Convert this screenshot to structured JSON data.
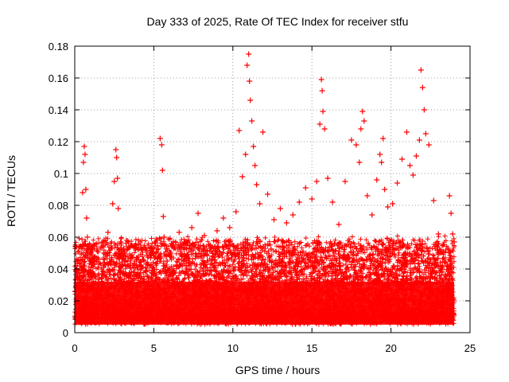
{
  "chart_data": {
    "type": "scatter",
    "title": "Day 333 of 2025, Rate Of TEC Index for receiver stfu",
    "xlabel": "GPS time / hours",
    "ylabel": "ROTI / TECUs",
    "xlim": [
      0,
      25
    ],
    "ylim": [
      0,
      0.18
    ],
    "xticks": [
      0,
      5,
      10,
      15,
      20,
      25
    ],
    "xtick_labels": [
      "0",
      "5",
      "10",
      "15",
      "20",
      "25"
    ],
    "yticks": [
      0,
      0.02,
      0.04,
      0.06,
      0.08,
      0.1,
      0.12,
      0.14,
      0.16,
      0.18
    ],
    "ytick_labels": [
      "0",
      "0.02",
      "0.04",
      "0.06",
      "0.08",
      "0.1",
      "0.12",
      "0.14",
      "0.16",
      "0.18"
    ],
    "grid": true,
    "marker": "plus",
    "color": "#ff0000",
    "series": [
      {
        "x": [
          0.05,
          0.2,
          0.35,
          0.5,
          0.55,
          0.6,
          0.65,
          0.7,
          0.75,
          0.8,
          0.85,
          0.9,
          1.0,
          1.2,
          1.5,
          1.8,
          2.1,
          2.4,
          2.5,
          2.6,
          2.65,
          2.7,
          2.75,
          2.8,
          3.0,
          3.3,
          3.6,
          3.9,
          4.2,
          4.5,
          4.8,
          5.0,
          5.2,
          5.4,
          5.5,
          5.55,
          5.6,
          5.65,
          5.8,
          6.2,
          6.6,
          7.0,
          7.4,
          7.8,
          8.2,
          8.6,
          9.0,
          9.4,
          9.8,
          10.2,
          10.4,
          10.6,
          10.8,
          10.9,
          11.0,
          11.05,
          11.1,
          11.2,
          11.3,
          11.4,
          11.5,
          11.7,
          11.9,
          12.2,
          12.6,
          13.0,
          13.4,
          13.8,
          14.2,
          14.6,
          15.0,
          15.3,
          15.5,
          15.6,
          15.65,
          15.7,
          15.8,
          16.0,
          16.3,
          16.7,
          17.1,
          17.5,
          17.8,
          18.0,
          18.1,
          18.2,
          18.3,
          18.5,
          18.8,
          19.1,
          19.3,
          19.4,
          19.5,
          19.6,
          19.8,
          20.1,
          20.4,
          20.7,
          21.0,
          21.2,
          21.4,
          21.6,
          21.8,
          21.9,
          22.0,
          22.1,
          22.2,
          22.4,
          22.7,
          23.0,
          23.3,
          23.6,
          23.7,
          23.8,
          23.9,
          24.0
        ],
        "y": [
          0.054,
          0.031,
          0.042,
          0.088,
          0.107,
          0.117,
          0.112,
          0.09,
          0.072,
          0.06,
          0.049,
          0.035,
          0.028,
          0.037,
          0.046,
          0.055,
          0.063,
          0.081,
          0.095,
          0.115,
          0.11,
          0.097,
          0.078,
          0.052,
          0.043,
          0.036,
          0.032,
          0.036,
          0.042,
          0.039,
          0.047,
          0.053,
          0.058,
          0.122,
          0.118,
          0.102,
          0.073,
          0.06,
          0.048,
          0.055,
          0.063,
          0.057,
          0.066,
          0.075,
          0.061,
          0.053,
          0.064,
          0.072,
          0.066,
          0.076,
          0.127,
          0.098,
          0.112,
          0.168,
          0.175,
          0.158,
          0.146,
          0.133,
          0.117,
          0.105,
          0.093,
          0.081,
          0.126,
          0.087,
          0.071,
          0.078,
          0.069,
          0.074,
          0.082,
          0.091,
          0.084,
          0.095,
          0.131,
          0.159,
          0.152,
          0.139,
          0.128,
          0.097,
          0.082,
          0.068,
          0.095,
          0.121,
          0.118,
          0.107,
          0.128,
          0.139,
          0.133,
          0.086,
          0.074,
          0.096,
          0.112,
          0.107,
          0.122,
          0.09,
          0.079,
          0.081,
          0.094,
          0.109,
          0.126,
          0.105,
          0.099,
          0.111,
          0.121,
          0.165,
          0.154,
          0.14,
          0.125,
          0.118,
          0.083,
          0.062,
          0.051,
          0.053,
          0.086,
          0.075,
          0.062,
          0.057
        ]
      }
    ]
  }
}
